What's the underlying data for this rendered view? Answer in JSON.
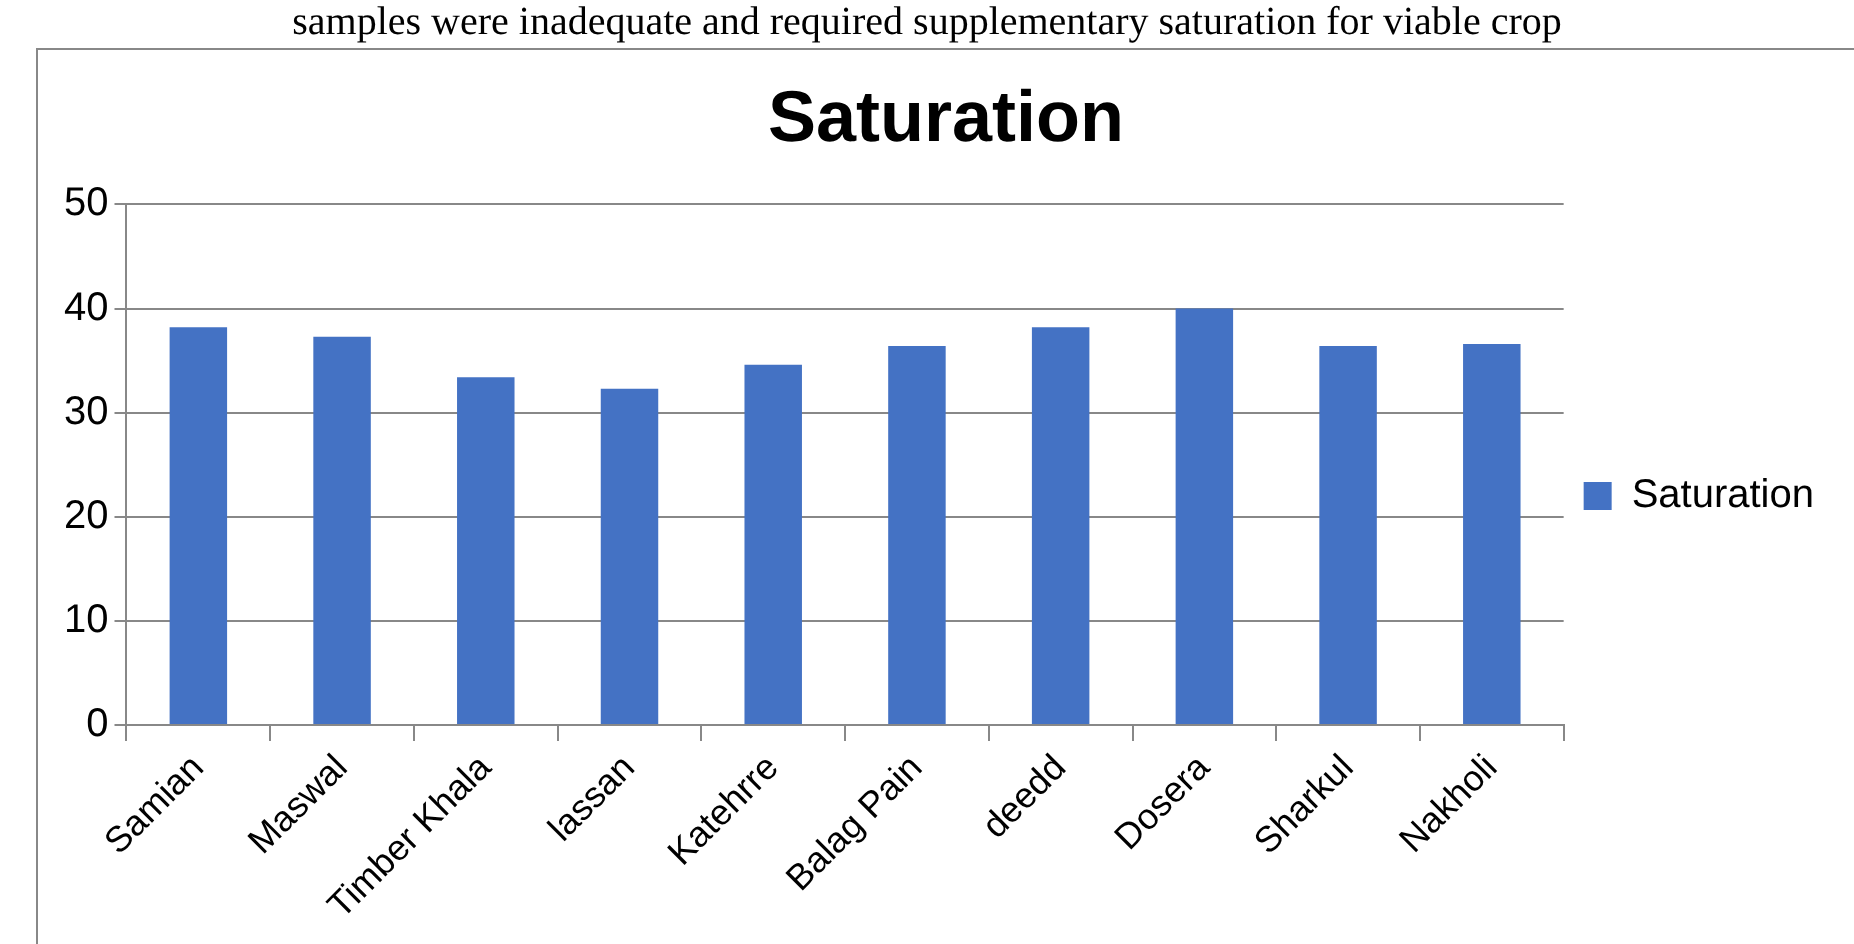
{
  "chart_data": {
    "type": "bar",
    "title": "Saturation",
    "annotations": [
      "samples were inadequate and required supplementary saturation for viable crop"
    ],
    "categories": [
      "Samian",
      "Maswal",
      "Timber Khala",
      "lassan",
      "Katehrre",
      "Balag Pain",
      "deedd",
      "Dosera",
      "Sharkul",
      "Nakholi"
    ],
    "series": [
      {
        "name": "Saturation",
        "color": "#4472c4",
        "values": [
          38.2,
          37.3,
          33.4,
          32.3,
          34.6,
          36.4,
          38.2,
          40,
          36.4,
          36.6
        ]
      }
    ],
    "ylim": [
      0,
      50
    ],
    "yticks": [
      0,
      10,
      20,
      30,
      40,
      50
    ],
    "grid": "y",
    "legend": "right"
  }
}
